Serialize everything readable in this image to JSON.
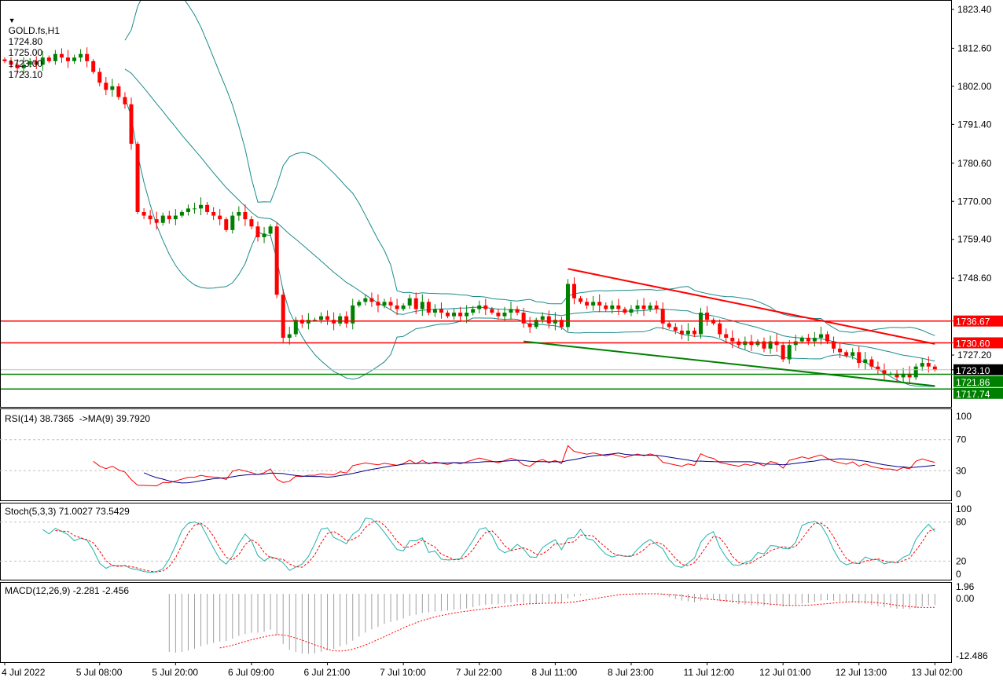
{
  "header": {
    "symbol": "GOLD.fs,H1",
    "open": "1724.80",
    "high": "1725.00",
    "low": "1723.00",
    "close": "1723.10"
  },
  "chart_data": {
    "type": "candlestick",
    "symbol": "GOLD.fs",
    "timeframe": "H1",
    "closes": [
      1809,
      1808,
      1807,
      1808,
      1809,
      1808,
      1810,
      1809,
      1811,
      1810,
      1809,
      1810,
      1811,
      1809,
      1806,
      1803,
      1801,
      1802,
      1799,
      1797,
      1786,
      1767,
      1766,
      1765,
      1764,
      1766,
      1765,
      1766,
      1767,
      1768,
      1768,
      1769,
      1767,
      1766,
      1765,
      1762,
      1766,
      1767,
      1765,
      1763,
      1760,
      1761,
      1763,
      1744,
      1732,
      1733,
      1737,
      1736,
      1737,
      1737,
      1738,
      1737,
      1736,
      1738,
      1736,
      1741,
      1742,
      1743,
      1742,
      1741,
      1742,
      1741,
      1740,
      1741,
      1743,
      1740,
      1742,
      1739,
      1740,
      1739,
      1738,
      1739,
      1738,
      1739,
      1740,
      1741,
      1740,
      1739,
      1738,
      1739,
      1740,
      1739,
      1736,
      1735,
      1737,
      1738,
      1736,
      1737,
      1735,
      1747,
      1743,
      1742,
      1741,
      1742,
      1741,
      1740,
      1741,
      1740,
      1739,
      1740,
      1741,
      1740,
      1741,
      1740,
      1736,
      1735,
      1734,
      1733,
      1734,
      1733,
      1739,
      1737,
      1736,
      1733,
      1732,
      1731,
      1730,
      1731,
      1730,
      1731,
      1729,
      1731,
      1730,
      1726,
      1730,
      1731,
      1732,
      1731,
      1732,
      1733,
      1731,
      1729,
      1728,
      1727,
      1728,
      1725,
      1726,
      1724,
      1723,
      1722,
      1722,
      1721,
      1722,
      1721,
      1724,
      1725,
      1724,
      1723.1
    ],
    "price_ticks": [
      "1823.40",
      "1812.60",
      "1802.00",
      "1791.40",
      "1780.60",
      "1770.00",
      "1759.40",
      "1748.60",
      "1727.20"
    ],
    "levels": [
      {
        "label": "1736.67",
        "value": 1736.67,
        "color": "#ff0000"
      },
      {
        "label": "1730.60",
        "value": 1730.6,
        "color": "#ff0000"
      },
      {
        "label": "1721.86",
        "value": 1721.86,
        "color": "#008000"
      },
      {
        "label": "1717.74",
        "value": 1717.74,
        "color": "#008000"
      }
    ],
    "current_price": {
      "label": "1723.10",
      "value": 1723.1
    },
    "trendlines": [
      {
        "color": "#ff0000",
        "from": {
          "bar": 89,
          "price": 1751.2
        },
        "to": {
          "bar": 147,
          "price": 1730.3
        }
      },
      {
        "color": "#008000",
        "from": {
          "bar": 82,
          "price": 1731.0
        },
        "to": {
          "bar": 147,
          "price": 1718.6
        }
      }
    ],
    "time_labels": [
      {
        "text": "4 Jul 2022",
        "bar": 0
      },
      {
        "text": "5 Jul 08:00",
        "bar": 15
      },
      {
        "text": "5 Jul 20:00",
        "bar": 27
      },
      {
        "text": "6 Jul 09:00",
        "bar": 39
      },
      {
        "text": "6 Jul 21:00",
        "bar": 51
      },
      {
        "text": "7 Jul 10:00",
        "bar": 63
      },
      {
        "text": "7 Jul 22:00",
        "bar": 75
      },
      {
        "text": "8 Jul 11:00",
        "bar": 87
      },
      {
        "text": "8 Jul 23:00",
        "bar": 99
      },
      {
        "text": "11 Jul 12:00",
        "bar": 111
      },
      {
        "text": "12 Jul 01:00",
        "bar": 123
      },
      {
        "text": "12 Jul 13:00",
        "bar": 135
      },
      {
        "text": "13 Jul 02:00",
        "bar": 147
      }
    ],
    "indicators": {
      "rsi": {
        "title": "RSI(14) 38.7365  ->MA(9) 39.7920",
        "ticks": [
          "100",
          "70",
          "30",
          "0"
        ]
      },
      "stoch": {
        "title": "Stoch(5,3,3) 71.0027 73.5429",
        "ticks": [
          "100",
          "80",
          "20",
          "0"
        ]
      },
      "macd": {
        "title": "MACD(12,26,9) -2.281 -2.456",
        "ticks": [
          "1.96",
          "0.00",
          "-12.486"
        ]
      }
    },
    "colors": {
      "bull": "#008000",
      "bear": "#ff0000",
      "bands": "#1a8a8a",
      "rsi": "#ff0000",
      "rsi_ma": "#00008b",
      "stoch_main": "#20b2aa",
      "stoch_signal": "#ff0000"
    }
  }
}
